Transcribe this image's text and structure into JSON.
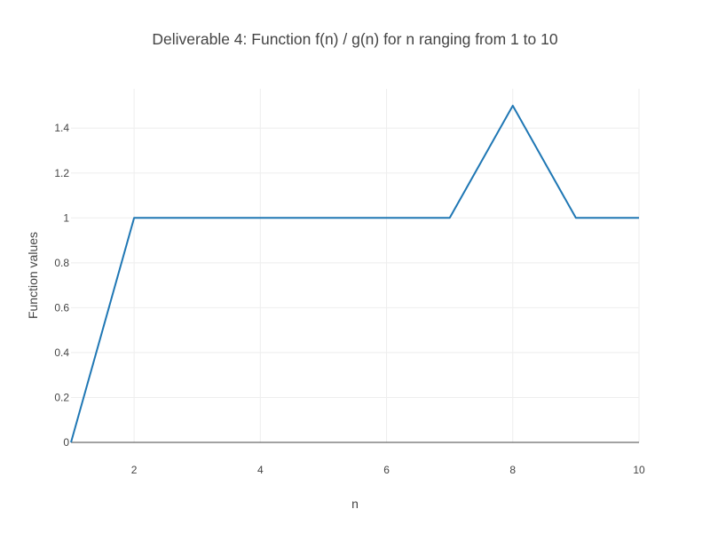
{
  "chart_data": {
    "type": "line",
    "title": "Deliverable 4: Function f(n) / g(n) for n ranging from 1 to 10",
    "xlabel": "n",
    "ylabel": "Function values",
    "xlim": [
      1,
      10
    ],
    "ylim": [
      0,
      1.575
    ],
    "x_ticks": [
      2,
      4,
      6,
      8,
      10
    ],
    "x_tick_labels": [
      "2",
      "4",
      "6",
      "8",
      "10"
    ],
    "y_ticks": [
      0,
      0.2,
      0.4,
      0.6,
      0.8,
      1,
      1.2,
      1.4
    ],
    "y_tick_labels": [
      "0",
      "0.2",
      "0.4",
      "0.6",
      "0.8",
      "1",
      "1.2",
      "1.4"
    ],
    "grid": true,
    "series": [
      {
        "color": "#1f77b4",
        "x": [
          1,
          2,
          3,
          4,
          5,
          6,
          7,
          8,
          9,
          10
        ],
        "values": [
          0,
          1,
          1,
          1,
          1,
          1,
          1,
          1.5,
          1,
          1
        ]
      }
    ]
  }
}
